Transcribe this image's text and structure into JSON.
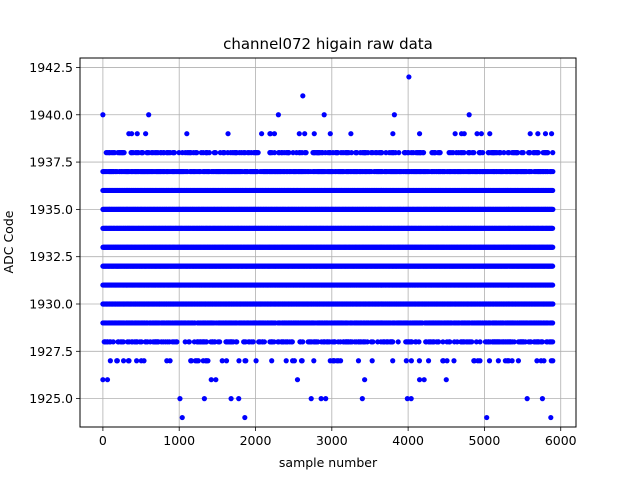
{
  "chart_data": {
    "type": "scatter",
    "title": "channel072 higain raw data",
    "xlabel": "sample number",
    "ylabel": "ADC Code",
    "xlim": [
      -300,
      6200
    ],
    "ylim": [
      1923.5,
      1943
    ],
    "xticks": [
      0,
      1000,
      2000,
      3000,
      4000,
      5000,
      6000
    ],
    "xtick_labels": [
      "0",
      "1000",
      "2000",
      "3000",
      "4000",
      "5000",
      "6000"
    ],
    "yticks": [
      1925.0,
      1927.5,
      1930.0,
      1932.5,
      1935.0,
      1937.5,
      1940.0,
      1942.5
    ],
    "ytick_labels": [
      "1925.0",
      "1927.5",
      "1930.0",
      "1932.5",
      "1935.0",
      "1937.5",
      "1940.0",
      "1942.5"
    ],
    "grid": true,
    "marker_color": "#0000ff",
    "x_range": [
      0,
      5900
    ],
    "level_density": [
      {
        "y": 1942,
        "density": 0
      },
      {
        "y": 1941,
        "density": 0
      },
      {
        "y": 1940,
        "density": 0
      },
      {
        "y": 1939,
        "density": 0.02
      },
      {
        "y": 1938,
        "density": 0.35
      },
      {
        "y": 1937,
        "density": 0.75
      },
      {
        "y": 1936,
        "density": 1.0
      },
      {
        "y": 1935,
        "density": 1.0
      },
      {
        "y": 1934,
        "density": 1.0
      },
      {
        "y": 1933,
        "density": 1.0
      },
      {
        "y": 1932,
        "density": 1.0
      },
      {
        "y": 1931,
        "density": 1.0
      },
      {
        "y": 1930,
        "density": 1.0
      },
      {
        "y": 1929,
        "density": 0.8
      },
      {
        "y": 1928,
        "density": 0.4
      },
      {
        "y": 1927,
        "density": 0.1
      },
      {
        "y": 1926,
        "density": 0
      },
      {
        "y": 1925,
        "density": 0
      },
      {
        "y": 1924,
        "density": 0
      }
    ],
    "outliers": [
      {
        "x": 0,
        "y": 1940
      },
      {
        "x": 600,
        "y": 1940
      },
      {
        "x": 2300,
        "y": 1940
      },
      {
        "x": 2900,
        "y": 1940
      },
      {
        "x": 3820,
        "y": 1940
      },
      {
        "x": 4800,
        "y": 1940
      },
      {
        "x": 2620,
        "y": 1941
      },
      {
        "x": 4010,
        "y": 1942
      },
      {
        "x": 340,
        "y": 1939
      },
      {
        "x": 450,
        "y": 1939
      },
      {
        "x": 560,
        "y": 1939
      },
      {
        "x": 1100,
        "y": 1939
      },
      {
        "x": 1640,
        "y": 1939
      },
      {
        "x": 2080,
        "y": 1939
      },
      {
        "x": 2770,
        "y": 1939
      },
      {
        "x": 2980,
        "y": 1939
      },
      {
        "x": 3250,
        "y": 1939
      },
      {
        "x": 3800,
        "y": 1939
      },
      {
        "x": 4150,
        "y": 1939
      },
      {
        "x": 4700,
        "y": 1939
      },
      {
        "x": 4960,
        "y": 1939
      },
      {
        "x": 5070,
        "y": 1939
      },
      {
        "x": 5600,
        "y": 1939
      },
      {
        "x": 5700,
        "y": 1939
      },
      {
        "x": 5800,
        "y": 1939
      },
      {
        "x": 5880,
        "y": 1939
      },
      {
        "x": 0,
        "y": 1926
      },
      {
        "x": 60,
        "y": 1926
      },
      {
        "x": 1420,
        "y": 1926
      },
      {
        "x": 1480,
        "y": 1926
      },
      {
        "x": 2550,
        "y": 1926
      },
      {
        "x": 3430,
        "y": 1926
      },
      {
        "x": 4150,
        "y": 1926
      },
      {
        "x": 4210,
        "y": 1926
      },
      {
        "x": 4500,
        "y": 1926
      },
      {
        "x": 1010,
        "y": 1925
      },
      {
        "x": 1330,
        "y": 1925
      },
      {
        "x": 1680,
        "y": 1925
      },
      {
        "x": 1780,
        "y": 1925
      },
      {
        "x": 2730,
        "y": 1925
      },
      {
        "x": 2860,
        "y": 1925
      },
      {
        "x": 2920,
        "y": 1925
      },
      {
        "x": 3400,
        "y": 1925
      },
      {
        "x": 3990,
        "y": 1925
      },
      {
        "x": 4040,
        "y": 1925
      },
      {
        "x": 5560,
        "y": 1925
      },
      {
        "x": 5760,
        "y": 1925
      },
      {
        "x": 1040,
        "y": 1924
      },
      {
        "x": 1860,
        "y": 1924
      },
      {
        "x": 5030,
        "y": 1924
      },
      {
        "x": 5870,
        "y": 1924
      }
    ]
  }
}
